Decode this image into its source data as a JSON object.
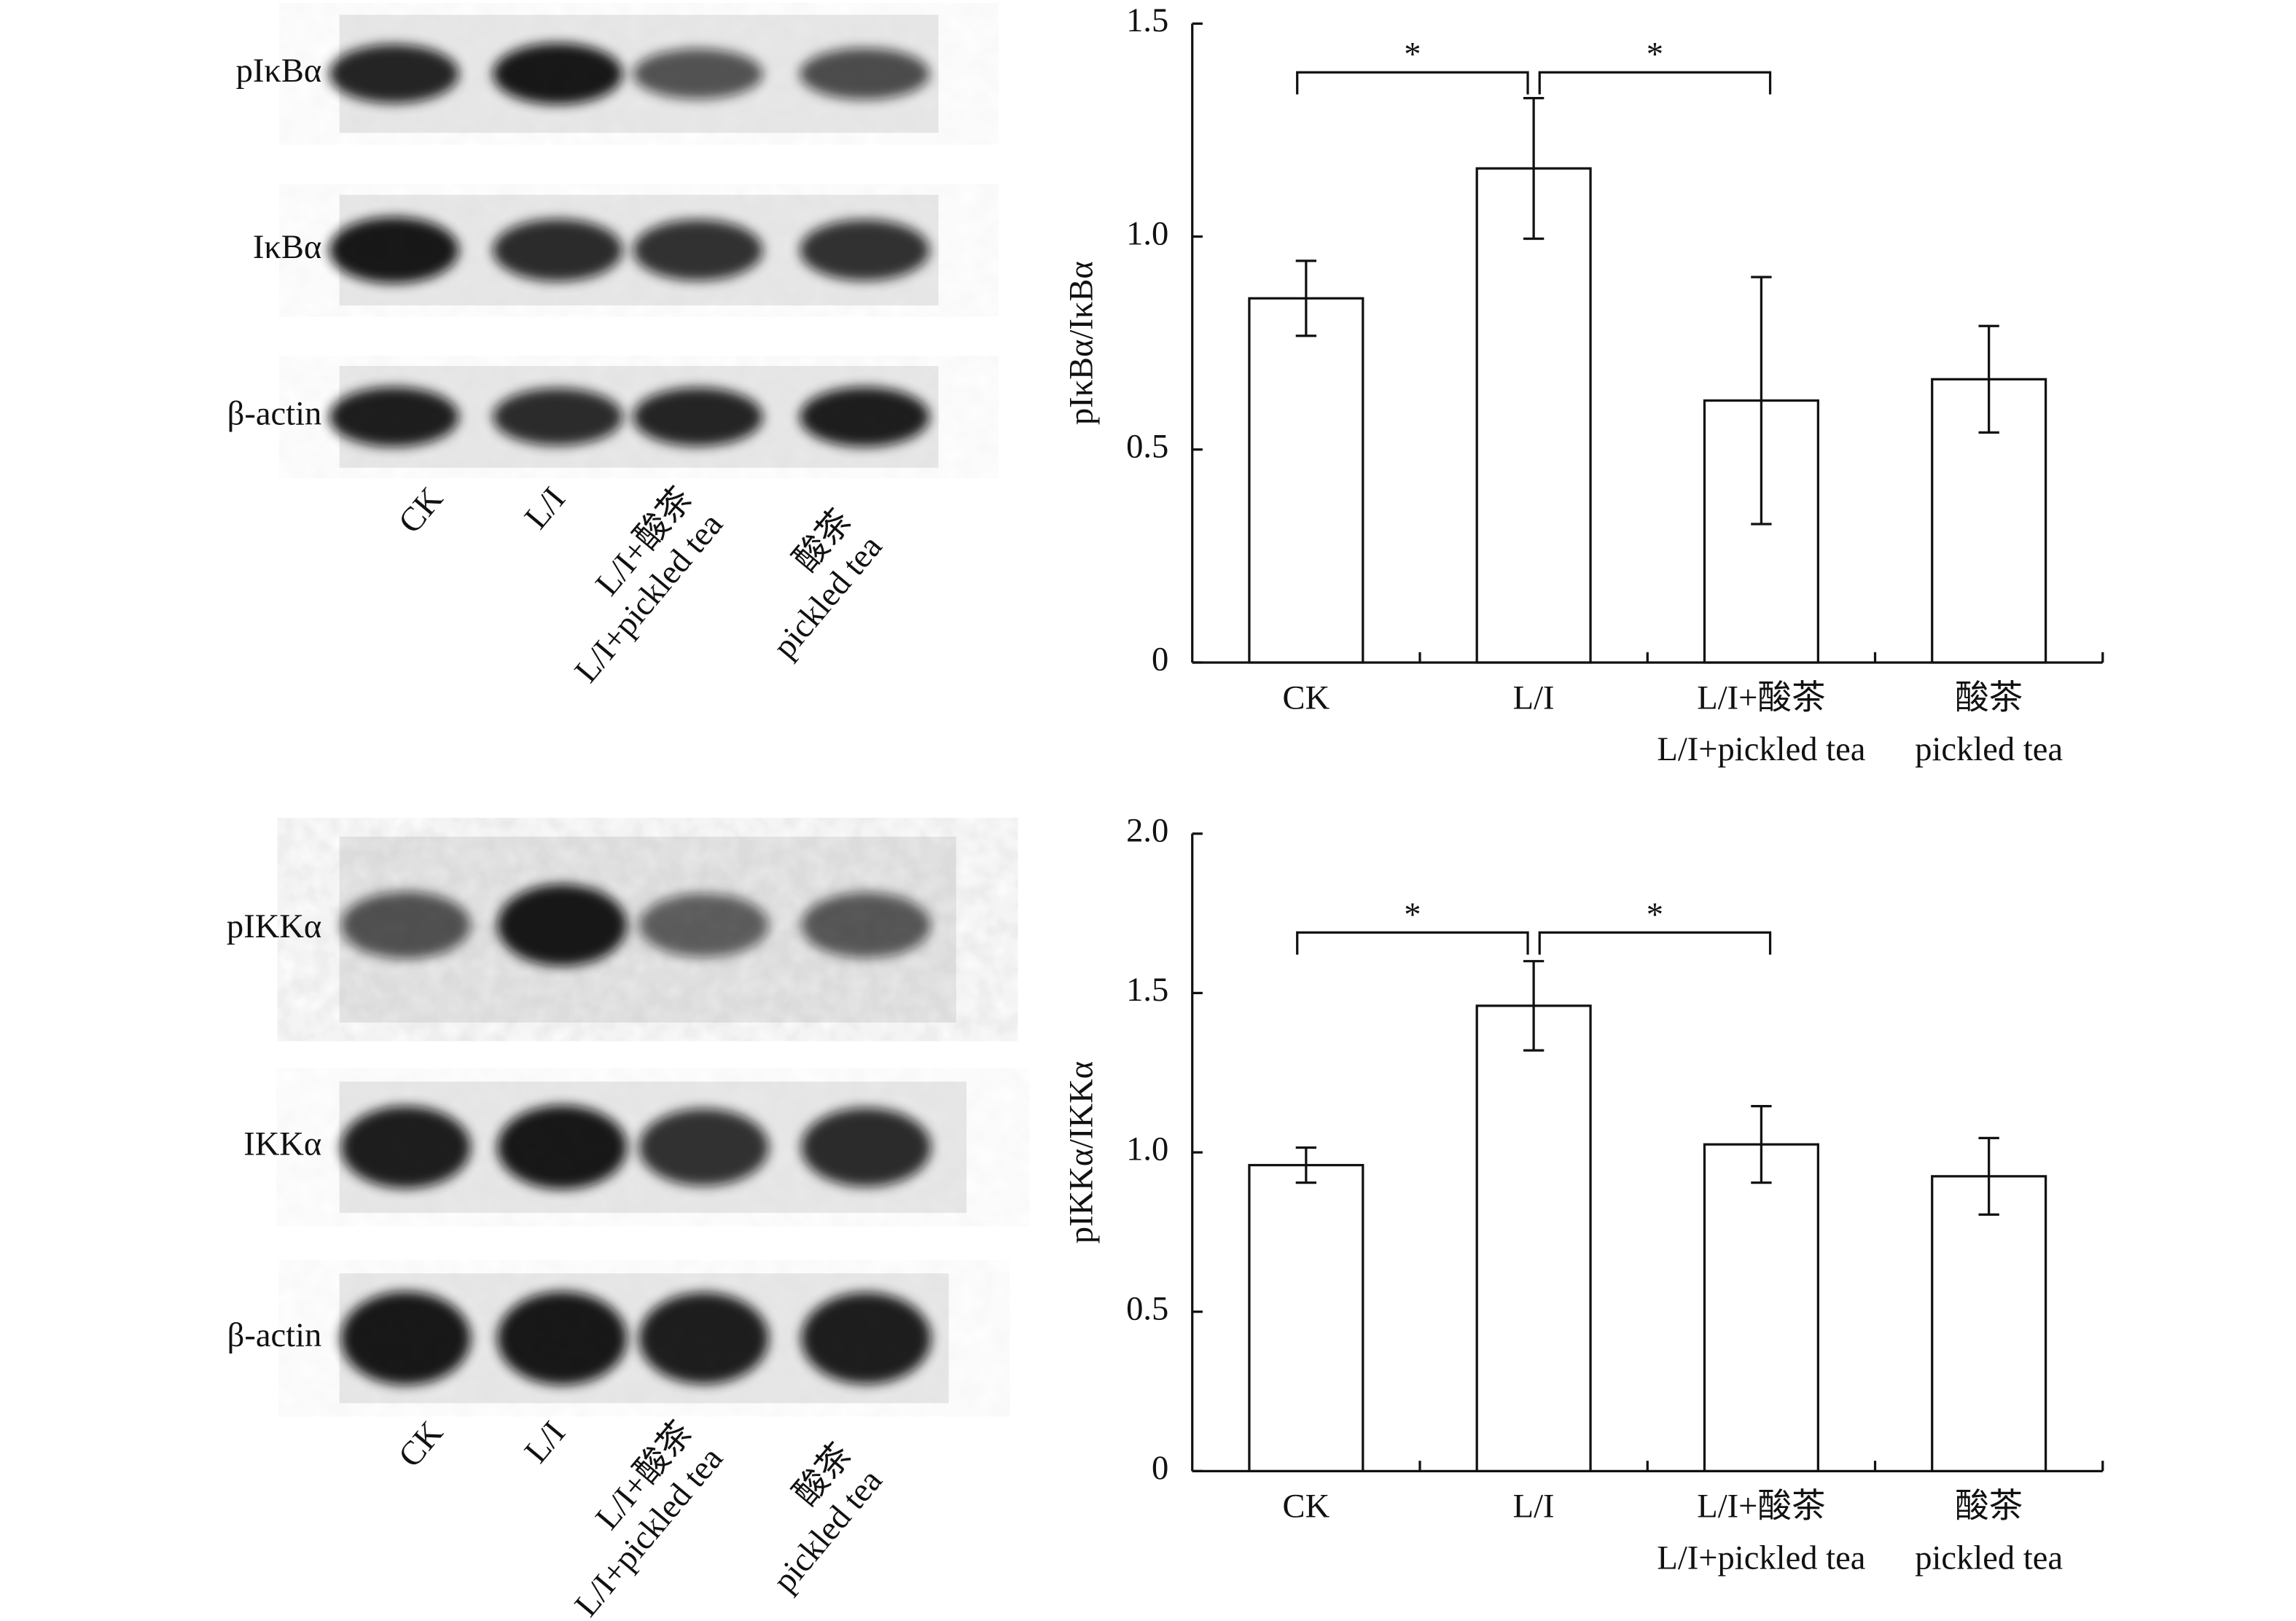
{
  "blots": [
    {
      "rows": [
        "pIκBα",
        "IκBα",
        "β-actin"
      ],
      "lanes": [
        [
          "CK"
        ],
        [
          "L/I"
        ],
        [
          "L/I+酸茶",
          "L/I+pickled tea"
        ],
        [
          "酸茶",
          "pickled tea"
        ]
      ]
    },
    {
      "rows": [
        "pIKKα",
        "IKKα",
        "β-actin"
      ],
      "lanes": [
        [
          "CK"
        ],
        [
          "L/I"
        ],
        [
          "L/I+酸茶",
          "L/I+pickled tea"
        ],
        [
          "酸茶",
          "pickled tea"
        ]
      ]
    }
  ],
  "chart_data": [
    {
      "type": "bar",
      "ylabel": "pIκBα/IκBα",
      "categories": [
        [
          "CK"
        ],
        [
          "L/I"
        ],
        [
          "L/I+酸茶",
          "L/I+pickled tea"
        ],
        [
          "酸茶",
          "pickled tea"
        ]
      ],
      "values": [
        0.855,
        1.16,
        0.615,
        0.665
      ],
      "errors": [
        0.088,
        0.165,
        0.29,
        0.125
      ],
      "color": "#ffffff",
      "ylim": [
        0,
        1.5
      ],
      "yticks": [
        0,
        0.5,
        {
          "value": 1,
          "label": "1.0"
        },
        1.5
      ],
      "significance": [
        {
          "label": "*",
          "pair": [
            "CK",
            "L/I"
          ]
        },
        {
          "label": "*",
          "pair": [
            "L/I",
            "L/I+酸茶"
          ]
        }
      ]
    },
    {
      "type": "bar",
      "ylabel": "pIKKα/IKKα",
      "categories": [
        [
          "CK"
        ],
        [
          "L/I"
        ],
        [
          "L/I+酸茶",
          "L/I+pickled tea"
        ],
        [
          "酸茶",
          "pickled tea"
        ]
      ],
      "values": [
        0.96,
        1.46,
        1.025,
        0.925
      ],
      "errors": [
        0.055,
        0.14,
        0.12,
        0.12
      ],
      "color": "#ffffff",
      "ylim": [
        0,
        2
      ],
      "yticks": [
        0,
        0.5,
        {
          "value": 1,
          "label": "1.0"
        },
        1.5,
        {
          "value": 2,
          "label": "2.0"
        }
      ],
      "significance": [
        {
          "label": "*",
          "pair": [
            "CK",
            "L/I"
          ]
        },
        {
          "label": "*",
          "pair": [
            "L/I",
            "L/I+酸茶"
          ]
        }
      ]
    }
  ]
}
